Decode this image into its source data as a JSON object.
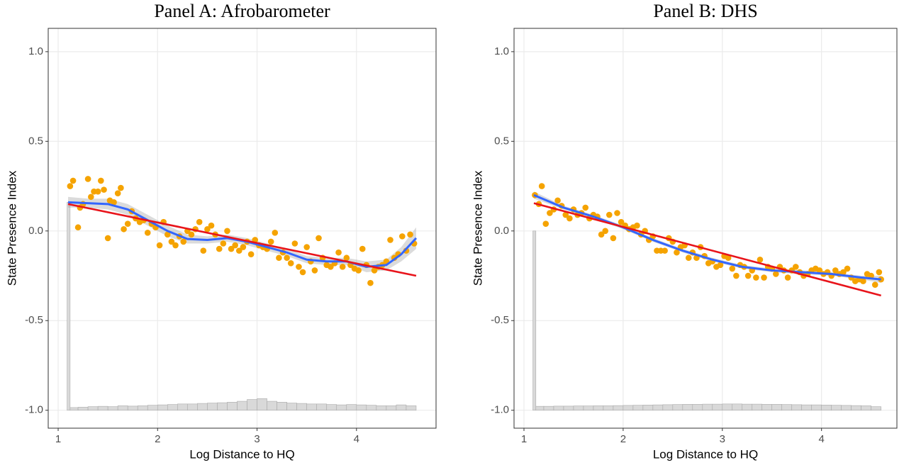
{
  "chart_data": [
    {
      "type": "scatter",
      "title": "Panel A: Afrobarometer",
      "x_label": "Log Distance to HQ",
      "y_label": "State Presence Index",
      "xlim": [
        0.9,
        4.8
      ],
      "ylim": [
        -1.1,
        1.13
      ],
      "xticks": [
        1,
        2,
        3,
        4
      ],
      "yticks": [
        {
          "value": -1,
          "label": "-1.0"
        },
        {
          "value": -0.5,
          "label": "-0.5"
        },
        {
          "value": 0,
          "label": "0.0"
        },
        {
          "value": 0.5,
          "label": "0.5"
        },
        {
          "value": 1,
          "label": "1.0"
        }
      ],
      "grid": true,
      "points": {
        "color": "#f5a300",
        "x": [
          1.12,
          1.15,
          1.2,
          1.22,
          1.25,
          1.3,
          1.33,
          1.36,
          1.4,
          1.43,
          1.46,
          1.5,
          1.52,
          1.56,
          1.6,
          1.63,
          1.66,
          1.7,
          1.74,
          1.78,
          1.82,
          1.86,
          1.9,
          1.94,
          1.98,
          2.02,
          2.06,
          2.1,
          2.14,
          2.18,
          2.22,
          2.26,
          2.3,
          2.34,
          2.38,
          2.42,
          2.46,
          2.5,
          2.54,
          2.58,
          2.62,
          2.66,
          2.7,
          2.74,
          2.78,
          2.82,
          2.86,
          2.9,
          2.94,
          2.98,
          3.02,
          3.06,
          3.1,
          3.14,
          3.18,
          3.22,
          3.26,
          3.3,
          3.34,
          3.38,
          3.42,
          3.46,
          3.5,
          3.54,
          3.58,
          3.62,
          3.66,
          3.7,
          3.74,
          3.78,
          3.82,
          3.86,
          3.9,
          3.94,
          3.98,
          4.02,
          4.06,
          4.1,
          4.14,
          4.18,
          4.22,
          4.26,
          4.3,
          4.34,
          4.38,
          4.42,
          4.46,
          4.5,
          4.54,
          4.58
        ],
        "y": [
          0.25,
          0.28,
          0.02,
          0.13,
          0.15,
          0.29,
          0.19,
          0.22,
          0.22,
          0.28,
          0.23,
          -0.04,
          0.17,
          0.16,
          0.21,
          0.24,
          0.01,
          0.04,
          0.11,
          0.07,
          0.05,
          0.06,
          -0.01,
          0.04,
          0.02,
          -0.08,
          0.05,
          -0.02,
          -0.06,
          -0.08,
          -0.03,
          -0.06,
          0.0,
          -0.02,
          0.01,
          0.05,
          -0.11,
          0.01,
          0.03,
          -0.02,
          -0.1,
          -0.07,
          0.0,
          -0.1,
          -0.08,
          -0.11,
          -0.09,
          -0.06,
          -0.13,
          -0.05,
          -0.08,
          -0.09,
          -0.1,
          -0.06,
          -0.01,
          -0.15,
          -0.12,
          -0.15,
          -0.18,
          -0.07,
          -0.2,
          -0.23,
          -0.09,
          -0.17,
          -0.22,
          -0.04,
          -0.15,
          -0.19,
          -0.2,
          -0.18,
          -0.12,
          -0.2,
          -0.15,
          -0.19,
          -0.21,
          -0.22,
          -0.1,
          -0.19,
          -0.29,
          -0.22,
          -0.2,
          -0.19,
          -0.17,
          -0.05,
          -0.15,
          -0.13,
          -0.03,
          -0.11,
          -0.02,
          -0.07
        ]
      },
      "smooth": {
        "color": "#3366ff",
        "x": [
          1.1,
          1.3,
          1.5,
          1.7,
          1.9,
          2.1,
          2.3,
          2.5,
          2.7,
          2.9,
          3.1,
          3.3,
          3.5,
          3.7,
          3.9,
          4.1,
          4.3,
          4.45,
          4.6
        ],
        "y": [
          0.16,
          0.155,
          0.15,
          0.12,
          0.06,
          0.0,
          -0.045,
          -0.05,
          -0.04,
          -0.06,
          -0.09,
          -0.12,
          -0.16,
          -0.17,
          -0.17,
          -0.2,
          -0.19,
          -0.13,
          -0.04
        ],
        "lower": [
          0.13,
          0.13,
          0.12,
          0.09,
          0.03,
          -0.03,
          -0.07,
          -0.07,
          -0.06,
          -0.08,
          -0.11,
          -0.14,
          -0.18,
          -0.19,
          -0.19,
          -0.23,
          -0.22,
          -0.17,
          -0.1
        ],
        "upper": [
          0.19,
          0.18,
          0.18,
          0.15,
          0.09,
          0.03,
          -0.02,
          -0.03,
          -0.02,
          -0.04,
          -0.07,
          -0.1,
          -0.14,
          -0.15,
          -0.15,
          -0.17,
          -0.16,
          -0.09,
          0.02
        ]
      },
      "fit": {
        "color": "#e8141b",
        "x": [
          1.1,
          4.6
        ],
        "y": [
          0.15,
          -0.25
        ]
      },
      "histogram": {
        "color": "#d9d9d9",
        "base": -1,
        "bins": [
          1.09,
          1.12,
          1.2,
          1.3,
          1.4,
          1.5,
          1.6,
          1.7,
          1.8,
          1.9,
          2.0,
          2.1,
          2.2,
          2.3,
          2.4,
          2.5,
          2.6,
          2.7,
          2.8,
          2.9,
          3.0,
          3.1,
          3.2,
          3.3,
          3.4,
          3.5,
          3.6,
          3.7,
          3.8,
          3.9,
          4.0,
          4.1,
          4.2,
          4.3,
          4.4,
          4.5,
          4.6
        ],
        "values": [
          0.16,
          -0.985,
          -0.983,
          -0.98,
          -0.978,
          -0.98,
          -0.975,
          -0.977,
          -0.975,
          -0.972,
          -0.97,
          -0.968,
          -0.965,
          -0.965,
          -0.962,
          -0.96,
          -0.958,
          -0.955,
          -0.95,
          -0.94,
          -0.935,
          -0.95,
          -0.955,
          -0.96,
          -0.962,
          -0.965,
          -0.965,
          -0.968,
          -0.97,
          -0.968,
          -0.97,
          -0.972,
          -0.975,
          -0.975,
          -0.97,
          -0.975
        ]
      }
    },
    {
      "type": "scatter",
      "title": "Panel B: DHS",
      "x_label": "Log Distance to HQ",
      "y_label": "State Presence Index",
      "xlim": [
        0.9,
        4.76
      ],
      "ylim": [
        -1.1,
        1.13
      ],
      "xticks": [
        1,
        2,
        3,
        4
      ],
      "yticks": [
        {
          "value": -1,
          "label": "-1.0"
        },
        {
          "value": -0.5,
          "label": "-0.5"
        },
        {
          "value": 0,
          "label": "0.0"
        },
        {
          "value": 0.5,
          "label": "0.5"
        },
        {
          "value": 1,
          "label": "1.0"
        }
      ],
      "grid": true,
      "points": {
        "color": "#f5a300",
        "x": [
          1.11,
          1.15,
          1.18,
          1.22,
          1.26,
          1.3,
          1.34,
          1.38,
          1.42,
          1.46,
          1.5,
          1.54,
          1.58,
          1.62,
          1.66,
          1.7,
          1.74,
          1.78,
          1.82,
          1.86,
          1.9,
          1.94,
          1.98,
          2.02,
          2.06,
          2.1,
          2.14,
          2.18,
          2.22,
          2.26,
          2.3,
          2.34,
          2.38,
          2.42,
          2.46,
          2.5,
          2.54,
          2.58,
          2.62,
          2.66,
          2.7,
          2.74,
          2.78,
          2.82,
          2.86,
          2.9,
          2.94,
          2.98,
          3.02,
          3.06,
          3.1,
          3.14,
          3.18,
          3.22,
          3.26,
          3.3,
          3.34,
          3.38,
          3.42,
          3.46,
          3.5,
          3.54,
          3.58,
          3.62,
          3.66,
          3.7,
          3.74,
          3.78,
          3.82,
          3.86,
          3.9,
          3.94,
          3.98,
          4.02,
          4.06,
          4.1,
          4.14,
          4.18,
          4.22,
          4.26,
          4.3,
          4.34,
          4.38,
          4.42,
          4.46,
          4.5,
          4.54,
          4.58,
          4.6
        ],
        "y": [
          0.2,
          0.15,
          0.25,
          0.04,
          0.1,
          0.12,
          0.17,
          0.14,
          0.09,
          0.07,
          0.12,
          0.09,
          0.1,
          0.13,
          0.07,
          0.09,
          0.08,
          -0.02,
          0.0,
          0.09,
          -0.04,
          0.1,
          0.05,
          0.03,
          0.01,
          0.02,
          0.03,
          -0.02,
          0.0,
          -0.05,
          -0.03,
          -0.11,
          -0.11,
          -0.11,
          -0.04,
          -0.06,
          -0.12,
          -0.09,
          -0.08,
          -0.15,
          -0.12,
          -0.15,
          -0.09,
          -0.14,
          -0.18,
          -0.17,
          -0.2,
          -0.19,
          -0.14,
          -0.15,
          -0.21,
          -0.25,
          -0.19,
          -0.2,
          -0.25,
          -0.22,
          -0.26,
          -0.16,
          -0.26,
          -0.2,
          -0.21,
          -0.24,
          -0.2,
          -0.22,
          -0.26,
          -0.22,
          -0.2,
          -0.23,
          -0.25,
          -0.24,
          -0.22,
          -0.21,
          -0.22,
          -0.24,
          -0.23,
          -0.25,
          -0.22,
          -0.24,
          -0.23,
          -0.21,
          -0.26,
          -0.28,
          -0.27,
          -0.28,
          -0.24,
          -0.25,
          -0.3,
          -0.23,
          -0.27
        ]
      },
      "smooth": {
        "color": "#3366ff",
        "x": [
          1.1,
          1.4,
          1.7,
          2.0,
          2.3,
          2.6,
          2.9,
          3.2,
          3.5,
          3.8,
          4.1,
          4.4,
          4.6
        ],
        "y": [
          0.2,
          0.13,
          0.08,
          0.02,
          -0.05,
          -0.11,
          -0.16,
          -0.2,
          -0.22,
          -0.23,
          -0.24,
          -0.26,
          -0.27
        ],
        "lower": [
          0.18,
          0.12,
          0.07,
          0.01,
          -0.06,
          -0.12,
          -0.17,
          -0.21,
          -0.23,
          -0.24,
          -0.25,
          -0.27,
          -0.29
        ],
        "upper": [
          0.22,
          0.14,
          0.09,
          0.03,
          -0.04,
          -0.1,
          -0.15,
          -0.19,
          -0.21,
          -0.22,
          -0.23,
          -0.25,
          -0.25
        ]
      },
      "fit": {
        "color": "#e8141b",
        "x": [
          1.1,
          4.6
        ],
        "y": [
          0.155,
          -0.36
        ]
      },
      "histogram": {
        "color": "#d9d9d9",
        "base": -1,
        "bins": [
          1.09,
          1.12,
          1.2,
          1.3,
          1.4,
          1.5,
          1.6,
          1.7,
          1.8,
          1.9,
          2.0,
          2.1,
          2.2,
          2.3,
          2.4,
          2.5,
          2.6,
          2.7,
          2.8,
          2.9,
          3.0,
          3.1,
          3.2,
          3.3,
          3.4,
          3.5,
          3.6,
          3.7,
          3.8,
          3.9,
          4.0,
          4.1,
          4.2,
          4.3,
          4.4,
          4.5,
          4.6
        ],
        "values": [
          0.0,
          -0.978,
          -0.978,
          -0.977,
          -0.977,
          -0.976,
          -0.976,
          -0.975,
          -0.975,
          -0.974,
          -0.973,
          -0.972,
          -0.971,
          -0.97,
          -0.969,
          -0.968,
          -0.967,
          -0.967,
          -0.966,
          -0.966,
          -0.965,
          -0.965,
          -0.966,
          -0.966,
          -0.967,
          -0.967,
          -0.968,
          -0.969,
          -0.97,
          -0.97,
          -0.971,
          -0.972,
          -0.973,
          -0.974,
          -0.975,
          -0.98
        ]
      }
    }
  ]
}
